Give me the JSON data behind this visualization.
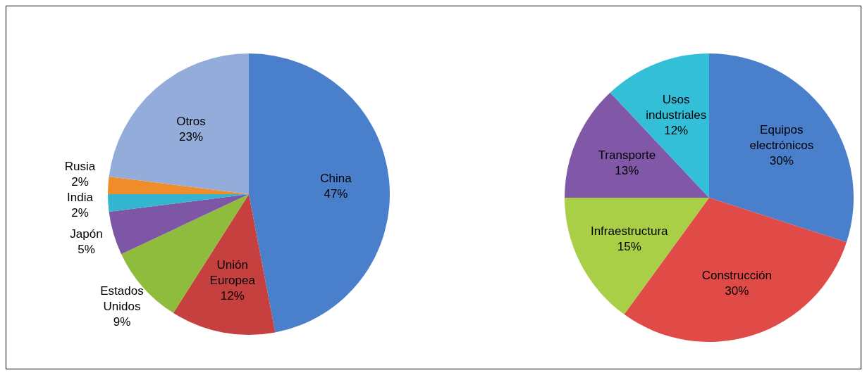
{
  "chart_data": [
    {
      "type": "pie",
      "categories": [
        "China",
        "Unión Europea",
        "Estados Unidos",
        "Japón",
        "India",
        "Rusia",
        "Otros"
      ],
      "values": [
        47,
        12,
        9,
        5,
        2,
        2,
        23
      ],
      "value_labels": [
        "47%",
        "12%",
        "9%",
        "5%",
        "2%",
        "2%",
        "23%"
      ],
      "colors": [
        "#4a7fcb",
        "#c64040",
        "#8fbc3c",
        "#7d57a6",
        "#33b4d0",
        "#f08c2a",
        "#93acd9"
      ],
      "legend": false
    },
    {
      "type": "pie",
      "categories": [
        "Equipos electrónicos",
        "Construcción",
        "Infraestructura",
        "Transporte",
        "Usos industriales"
      ],
      "values": [
        30,
        30,
        15,
        13,
        12
      ],
      "value_labels": [
        "30%",
        "30%",
        "15%",
        "13%",
        "12%"
      ],
      "colors": [
        "#4a7fcb",
        "#e04b47",
        "#a8cf45",
        "#8058a7",
        "#34bfd9"
      ],
      "legend": false
    }
  ]
}
